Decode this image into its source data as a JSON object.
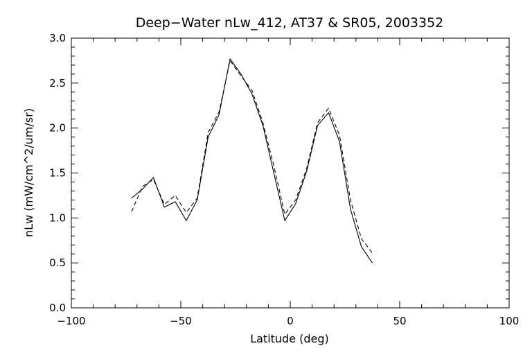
{
  "chart_data": {
    "type": "line",
    "title": "Deep−Water nLw_412, AT37 & SR05, 2003352",
    "xlabel": "Latitude (deg)",
    "ylabel": "nLw (mW/cm^2/um/sr)",
    "xlim": [
      -100,
      100
    ],
    "ylim": [
      0,
      3
    ],
    "xticks": [
      -100,
      -50,
      0,
      50,
      100
    ],
    "xtick_labels": [
      "−100",
      "−50",
      "0",
      "50",
      "100"
    ],
    "yticks": [
      0,
      0.5,
      1,
      1.5,
      2,
      2.5,
      3
    ],
    "ytick_labels": [
      "0.0",
      "0.5",
      "1.0",
      "1.5",
      "2.0",
      "2.5",
      "3.0"
    ],
    "grid": false,
    "series": [
      {
        "style": "solid",
        "x": [
          -72.5,
          -67.5,
          -62.5,
          -57.5,
          -52.5,
          -47.5,
          -42.5,
          -37.5,
          -32.5,
          -27.5,
          -22.5,
          -17.5,
          -12.5,
          -7.5,
          -2.5,
          2.5,
          7.5,
          12.5,
          17.5,
          22.5,
          27.5,
          32.5,
          37.5
        ],
        "y": [
          1.22,
          1.32,
          1.45,
          1.12,
          1.18,
          0.97,
          1.2,
          1.9,
          2.15,
          2.77,
          2.6,
          2.38,
          2.03,
          1.5,
          0.97,
          1.16,
          1.52,
          2.03,
          2.17,
          1.85,
          1.1,
          0.68,
          0.5
        ]
      },
      {
        "style": "dashed",
        "x": [
          -72.5,
          -67.5,
          -62.5,
          -57.5,
          -52.5,
          -47.5,
          -42.5,
          -37.5,
          -32.5,
          -27.5,
          -22.5,
          -17.5,
          -12.5,
          -7.5,
          -2.5,
          2.5,
          7.5,
          12.5,
          17.5,
          22.5,
          27.5,
          32.5,
          37.5
        ],
        "y": [
          1.07,
          1.35,
          1.43,
          1.15,
          1.25,
          1.06,
          1.22,
          1.95,
          2.18,
          2.75,
          2.58,
          2.42,
          2.06,
          1.58,
          1.04,
          1.2,
          1.55,
          2.06,
          2.22,
          1.92,
          1.2,
          0.77,
          0.61
        ]
      }
    ]
  }
}
